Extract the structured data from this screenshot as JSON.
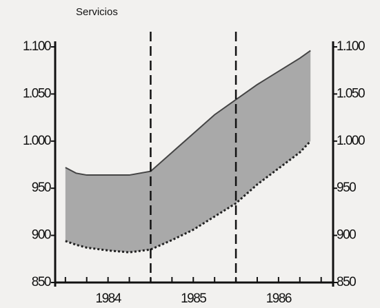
{
  "chart_data": {
    "type": "band",
    "title": "Servicios",
    "x": [
      1983.5,
      1983.625,
      1983.75,
      1984,
      1984.25,
      1984.5,
      1984.75,
      1985,
      1985.25,
      1985.5,
      1985.75,
      1986,
      1986.25,
      1986.375
    ],
    "series": [
      {
        "color": "#a9a9a9",
        "values": [
          972,
          966,
          964,
          964,
          964,
          968,
          988,
          1008,
          1028,
          1044,
          1060,
          1074,
          1088,
          1096
        ]
      },
      {
        "color": "#222222",
        "values": [
          894,
          890,
          887,
          884,
          882,
          885,
          895,
          906,
          920,
          934,
          954,
          971,
          988,
          1000
        ]
      }
    ],
    "xlim": [
      1983.38,
      1986.64
    ],
    "xticks": [
      1984,
      1985,
      1986
    ],
    "xminorticks": [
      1983.5,
      1983.75,
      1984.25,
      1984.5,
      1984.75,
      1985.25,
      1985.5,
      1985.75,
      1986.25,
      1986.5
    ],
    "vlines": [
      1984.5,
      1985.5
    ],
    "ylim": [
      850,
      1100
    ],
    "yticks": [
      {
        "value": 1100,
        "label": "1.100"
      },
      {
        "value": 1050,
        "label": "1.050"
      },
      {
        "value": 1000,
        "label": "1.000"
      },
      950,
      900,
      850
    ],
    "y2lim": [
      850,
      1100
    ],
    "y2ticks": [
      {
        "value": 1100,
        "label": "1.100"
      },
      {
        "value": 1050,
        "label": "1.050"
      },
      {
        "value": 1000,
        "label": "1.000"
      },
      950,
      900,
      850
    ]
  }
}
